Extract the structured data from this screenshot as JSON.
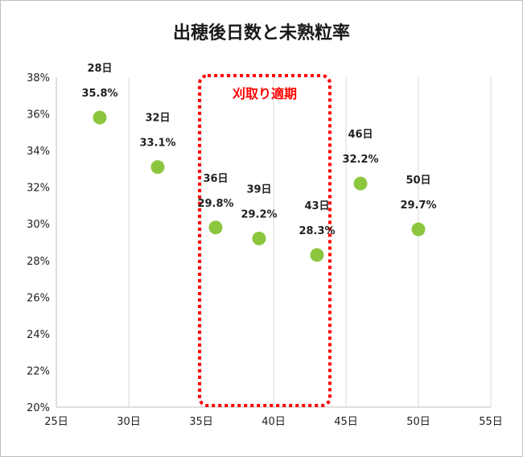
{
  "chart_data": {
    "type": "scatter",
    "title": "出穂後日数と未熟粒率",
    "xlabel": "",
    "ylabel": "",
    "xlim": [
      25,
      55
    ],
    "ylim": [
      20,
      38
    ],
    "x_ticks": [
      25,
      30,
      35,
      40,
      45,
      50,
      55
    ],
    "x_tick_labels": [
      "25日",
      "30日",
      "35日",
      "40日",
      "45日",
      "50日",
      "55日"
    ],
    "y_ticks": [
      20,
      22,
      24,
      26,
      28,
      30,
      32,
      34,
      36,
      38
    ],
    "y_tick_labels": [
      "20%",
      "22%",
      "24%",
      "26%",
      "28%",
      "30%",
      "32%",
      "34%",
      "36%",
      "38%"
    ],
    "grid": "vertical",
    "series": [
      {
        "x": [
          28,
          32,
          36,
          39,
          43,
          46,
          50
        ],
        "y": [
          35.8,
          33.1,
          29.8,
          29.2,
          28.3,
          32.2,
          29.7
        ],
        "day_labels": [
          "28日",
          "32日",
          "36日",
          "39日",
          "43日",
          "46日",
          "50日"
        ],
        "value_labels": [
          "35.8%",
          "33.1%",
          "29.8%",
          "29.2%",
          "28.3%",
          "32.2%",
          "29.7%"
        ],
        "color": "#8cc63f"
      }
    ],
    "annotation": {
      "text": "刈取り適期",
      "x_range": [
        35,
        44
      ],
      "color": "#ff0000"
    }
  }
}
